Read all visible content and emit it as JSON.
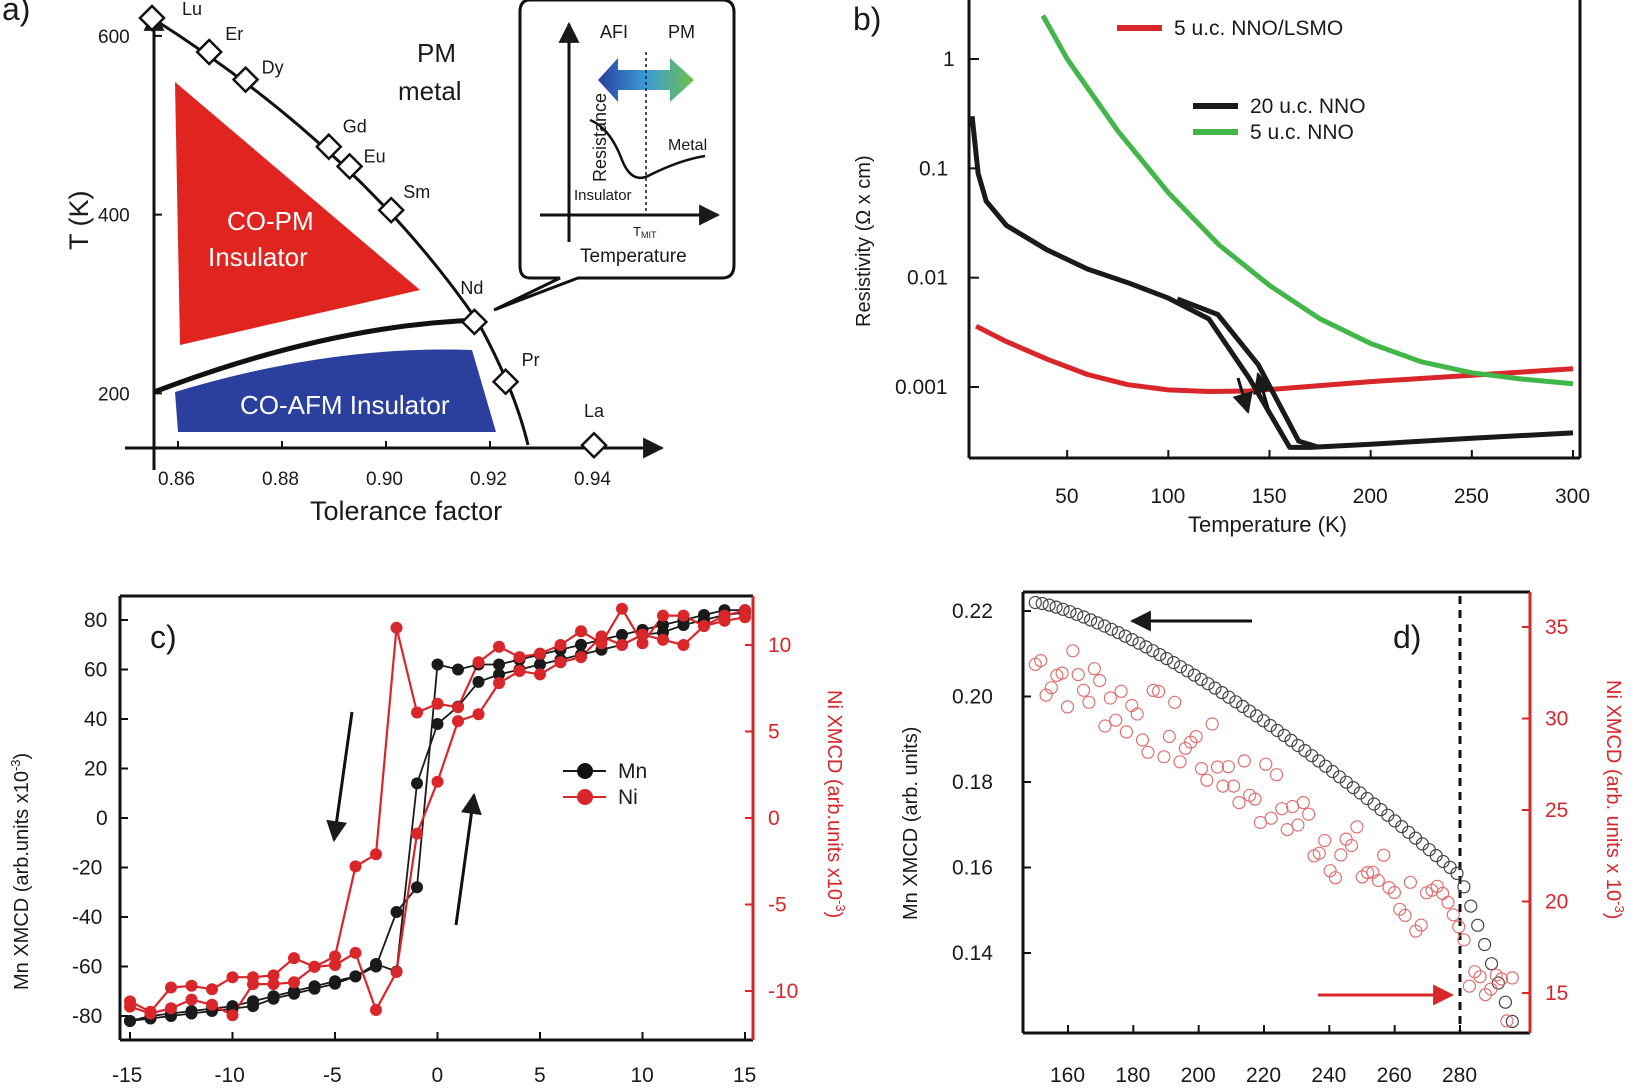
{
  "colors": {
    "red": "#d9262a",
    "black": "#1a1a1a",
    "green": "#43b649",
    "blue": "#2b3f9e",
    "gray": "#333333"
  },
  "chart_data": [
    {
      "panel": "a)",
      "type": "scatter",
      "title": "",
      "xlabel": "Tolerance factor",
      "ylabel": "T (K)",
      "xlim": [
        0.855,
        0.95
      ],
      "ylim": [
        140,
        620
      ],
      "xticks": [
        "0.86",
        "0.88",
        "0.90",
        "0.92",
        "0.94"
      ],
      "yticks": [
        "200",
        "400",
        "600"
      ],
      "points": [
        {
          "label": "Lu",
          "x": 0.855,
          "y": 620
        },
        {
          "label": "Er",
          "x": 0.866,
          "y": 582
        },
        {
          "label": "Dy",
          "x": 0.873,
          "y": 551
        },
        {
          "label": "Gd",
          "x": 0.889,
          "y": 476
        },
        {
          "label": "Eu",
          "x": 0.893,
          "y": 454
        },
        {
          "label": "Sm",
          "x": 0.901,
          "y": 405
        },
        {
          "label": "Nd",
          "x": 0.917,
          "y": 280
        },
        {
          "label": "Pr",
          "x": 0.923,
          "y": 213
        },
        {
          "label": "La",
          "x": 0.94,
          "y": 142
        }
      ],
      "regions": [
        "CO-PM",
        "Insulator",
        "CO-AFM Insulator",
        "PM",
        "metal"
      ],
      "inset": {
        "ylabel": "Resistance",
        "xlabel": "Temperature",
        "afi": "AFI",
        "pm": "PM",
        "insulator": "Insulator",
        "metal": "Metal",
        "tmit": "T",
        "tmit_sub": "MIT"
      }
    },
    {
      "panel": "b)",
      "type": "line",
      "xlabel": "Temperature (K)",
      "ylabel": "Resistivity (Ω x cm)",
      "yscale": "log",
      "xlim": [
        0,
        300
      ],
      "ylim": [
        0.0003,
        2.5
      ],
      "xticks": [
        "50",
        "100",
        "150",
        "200",
        "250",
        "300"
      ],
      "yticks": [
        "1",
        "0.1",
        "0.01",
        "0.001"
      ],
      "series": [
        {
          "name": "5 u.c. NNO/LSMO",
          "x": [
            5,
            20,
            40,
            60,
            80,
            100,
            120,
            140,
            160,
            200,
            250,
            300
          ],
          "y": [
            0.0036,
            0.0026,
            0.0018,
            0.0013,
            0.00105,
            0.00094,
            0.00091,
            0.00092,
            0.00098,
            0.00112,
            0.00128,
            0.00147
          ]
        },
        {
          "name": "20 u.c. NNO",
          "x": [
            3,
            6,
            10,
            20,
            40,
            60,
            80,
            100,
            120,
            140,
            160,
            170,
            200,
            250,
            300
          ],
          "y": [
            0.3,
            0.09,
            0.05,
            0.03,
            0.018,
            0.012,
            0.009,
            0.0065,
            0.0042,
            0.0012,
            0.00028,
            0.00028,
            0.0003,
            0.00034,
            0.00038
          ]
        },
        {
          "name": "5 u.c. NNO",
          "x": [
            38,
            50,
            75,
            100,
            125,
            150,
            175,
            200,
            225,
            250,
            275,
            300
          ],
          "y": [
            2.5,
            1.0,
            0.22,
            0.06,
            0.02,
            0.0085,
            0.0042,
            0.0025,
            0.0017,
            0.00135,
            0.00118,
            0.00107
          ]
        }
      ]
    },
    {
      "panel": "c)",
      "type": "line",
      "ylabel": "Mn XMCD (arb.units x10",
      "ylabel_sup": "-3",
      "ylabel_close": ")",
      "y2label": "Ni XMCD (arb.units x10",
      "y2label_sup": "-3",
      "y2label_close": ")",
      "xlim": [
        -15.5,
        15.5
      ],
      "ylim": [
        -90,
        90
      ],
      "y2lim": [
        -13.5,
        13.5
      ],
      "xticks": [
        "-15",
        "-10",
        "-5",
        "0",
        "5",
        "10",
        "15"
      ],
      "yticks": [
        "80",
        "60",
        "40",
        "20",
        "0",
        "-20",
        "-40",
        "-60",
        "-80"
      ],
      "y2ticks": [
        "10",
        "5",
        "0",
        "-5",
        "-10"
      ],
      "series": [
        {
          "name": "Mn",
          "x": [
            -15,
            -14,
            -13,
            -12,
            -11,
            -10,
            -9,
            -8,
            -7,
            -6,
            -5,
            -4,
            -3,
            -2,
            -1,
            0,
            1,
            2,
            3,
            4,
            5,
            6,
            7,
            8,
            9,
            10,
            11,
            12,
            13,
            14,
            15
          ],
          "down": [
            -82,
            -80,
            -79,
            -78,
            -77,
            -76,
            -74,
            -72,
            -70,
            -68,
            -66,
            -64,
            -60,
            -38,
            -28,
            62,
            60,
            62,
            62,
            64,
            66,
            68,
            70,
            72,
            74,
            76,
            78,
            80,
            82,
            84,
            84
          ],
          "up": [
            -82,
            -81,
            -80,
            -79,
            -78,
            -77,
            -76,
            -73,
            -71,
            -69,
            -67,
            -64,
            -59,
            -62,
            14,
            38,
            45,
            55,
            58,
            60,
            62,
            64,
            66,
            68,
            70,
            74,
            75,
            78,
            80,
            82,
            83
          ]
        },
        {
          "name": "Ni",
          "x": [
            -15,
            -14,
            -13,
            -12,
            -11,
            -10,
            -9,
            -8,
            -7,
            -6,
            -5,
            -4,
            -3,
            -2,
            -1,
            0,
            1,
            2,
            3,
            4,
            5,
            6,
            7,
            8,
            9,
            10,
            11,
            12,
            13,
            14,
            15
          ],
          "down": [
            -10.6,
            -11.2,
            -9.8,
            -9.7,
            -9.9,
            -9.2,
            -9.2,
            -9.1,
            -8.1,
            -8.6,
            -8.0,
            -2.8,
            -2.1,
            11.0,
            6.1,
            6.6,
            6.4,
            9.0,
            9.9,
            9.3,
            9.5,
            10.0,
            10.8,
            10.1,
            12.1,
            10.1,
            11.7,
            11.7,
            11.1,
            11.7,
            12.0
          ],
          "up": [
            -10.9,
            -11.3,
            -11.0,
            -10.5,
            -10.8,
            -11.4,
            -9.6,
            -9.6,
            -9.5,
            -8.6,
            -8.5,
            -7.8,
            -11.1,
            -8.9,
            -0.9,
            2.1,
            5.6,
            6.0,
            7.8,
            8.5,
            8.3,
            9.0,
            9.3,
            10.5,
            10.0,
            10.6,
            10.3,
            10.0,
            11.1,
            11.4,
            11.6
          ]
        }
      ],
      "legend": [
        "Mn",
        "Ni"
      ]
    },
    {
      "panel": "d)",
      "type": "scatter",
      "ylabel": "Mn XMCD (arb. units)",
      "y2label": "Ni XMCD (arb. units x 10",
      "y2label_sup": "-3",
      "y2label_close": ")",
      "xlim": [
        148,
        298
      ],
      "ylim": [
        0.123,
        0.225
      ],
      "y2lim": [
        13,
        36.5
      ],
      "xticks": [
        "160",
        "180",
        "200",
        "220",
        "240",
        "260",
        "280"
      ],
      "yticks": [
        "0.22",
        "0.20",
        "0.18",
        "0.16",
        "0.14"
      ],
      "y2ticks": [
        "35",
        "30",
        "25",
        "20",
        "15"
      ],
      "vline": 280,
      "series": [
        {
          "name": "Mn",
          "x0": 150,
          "x1": 296,
          "n": 70,
          "y0": 0.222,
          "y1": 0.158,
          "ydrop_end": 0.124
        },
        {
          "name": "Ni",
          "x0": 150,
          "x1": 296,
          "n": 90,
          "y0": 33,
          "y1": 18,
          "ydrop_end": 14
        }
      ]
    }
  ]
}
